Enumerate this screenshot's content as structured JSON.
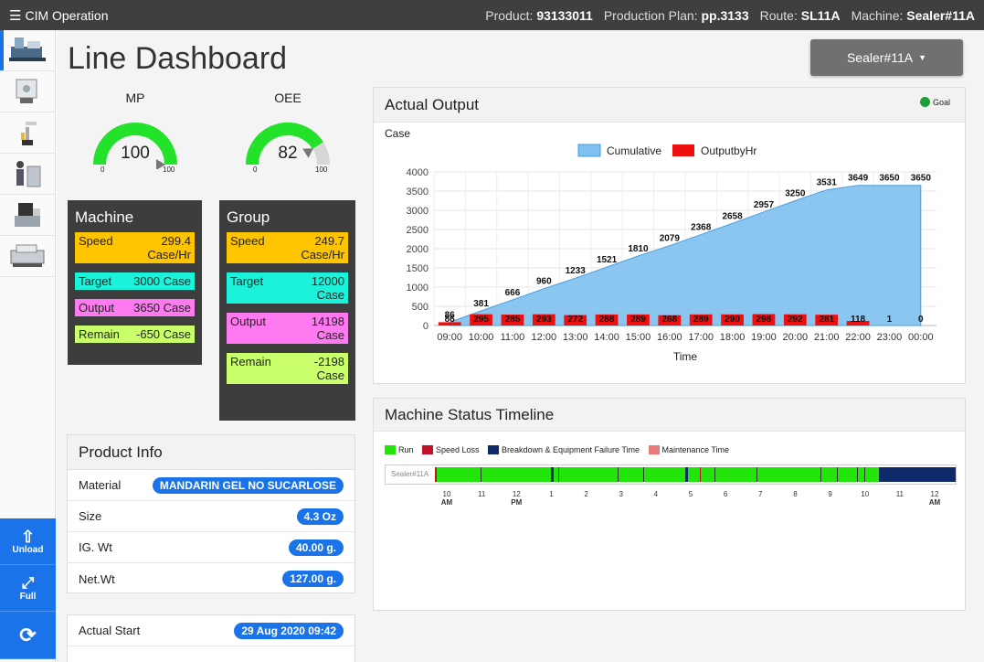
{
  "topbar": {
    "app_title": "CIM Operation",
    "product_label": "Product:",
    "product_value": "93133011",
    "plan_label": "Production Plan:",
    "plan_value": "pp.3133",
    "route_label": "Route:",
    "route_value": "SL11A",
    "machine_label": "Machine:",
    "machine_value": "Sealer#11A"
  },
  "sidebar": {
    "icons": [
      "filling-machine-icon",
      "conveyor-icon",
      "robot-arm-icon",
      "worker-icon",
      "packaging-icon",
      "printer-machine-icon"
    ],
    "buttons": [
      {
        "name": "unload",
        "label": "Unload"
      },
      {
        "name": "full",
        "label": "Full"
      },
      {
        "name": "refresh",
        "label": ""
      }
    ]
  },
  "page": {
    "title": "Line Dashboard",
    "machine_select": "Sealer#11A"
  },
  "gauges": [
    {
      "name": "mp",
      "label": "MP",
      "value": "100",
      "min": "0",
      "max": "100",
      "fraction": 1.0,
      "color": "#22e22a"
    },
    {
      "name": "oee",
      "label": "OEE",
      "value": "82",
      "min": "0",
      "max": "100",
      "fraction": 0.82,
      "color": "#22e22a"
    }
  ],
  "machine_panel": {
    "title": "Machine",
    "rows": [
      {
        "label": "Speed",
        "value": "299.4",
        "unit": "Case/Hr",
        "color": "y"
      },
      {
        "label": "Target",
        "value": "3000 Case",
        "unit": "",
        "color": "c"
      },
      {
        "label": "Output",
        "value": "3650 Case",
        "unit": "",
        "color": "m"
      },
      {
        "label": "Remain",
        "value": "-650 Case",
        "unit": "",
        "color": "g"
      }
    ]
  },
  "group_panel": {
    "title": "Group",
    "rows": [
      {
        "label": "Speed",
        "value": "249.7",
        "unit": "Case/Hr",
        "color": "y"
      },
      {
        "label": "Target",
        "value": "12000",
        "unit": "Case",
        "color": "c"
      },
      {
        "label": "Output",
        "value": "14198",
        "unit": "Case",
        "color": "m"
      },
      {
        "label": "Remain",
        "value": "-2198",
        "unit": "Case",
        "color": "g"
      }
    ]
  },
  "product_info": {
    "title": "Product Info",
    "rows": [
      {
        "label": "Material",
        "value": "MANDARIN GEL NO SUCARLOSE"
      },
      {
        "label": "Size",
        "value": "4.3 Oz"
      },
      {
        "label": "IG. Wt",
        "value": "40.00 g."
      },
      {
        "label": "Net.Wt",
        "value": "127.00 g."
      }
    ]
  },
  "start_info": {
    "rows": [
      {
        "label": "Actual Start",
        "value": "29 Aug 2020 09:42"
      }
    ]
  },
  "actual_output": {
    "title": "Actual Output",
    "goal_label": "Goal",
    "goal_color": "#1e9e3a"
  },
  "chart_data": {
    "type": "bar",
    "title": "",
    "ylabel": "Case",
    "xlabel": "Time",
    "ylim": [
      0,
      4000
    ],
    "yticks": [
      0,
      500,
      1000,
      1500,
      2000,
      2500,
      3000,
      3500,
      4000
    ],
    "categories": [
      "09:00",
      "10:00",
      "11:00",
      "12:00",
      "13:00",
      "14:00",
      "15:00",
      "16:00",
      "17:00",
      "18:00",
      "19:00",
      "20:00",
      "21:00",
      "22:00",
      "23:00",
      "00:00"
    ],
    "series": [
      {
        "name": "Cumulative",
        "type": "area",
        "color": "#7ec0ef",
        "values": [
          86,
          381,
          666,
          960,
          1233,
          1521,
          1810,
          2079,
          2368,
          2658,
          2957,
          3250,
          3531,
          3649,
          3650,
          3650
        ]
      },
      {
        "name": "OutputbyHr",
        "type": "bar",
        "color": "#ee0f0f",
        "values": [
          86,
          295,
          285,
          293,
          272,
          288,
          289,
          268,
          289,
          290,
          298,
          292,
          281,
          118,
          1,
          0
        ]
      }
    ],
    "legend_position": "top",
    "grid": true
  },
  "timeline": {
    "title": "Machine Status Timeline",
    "legend": [
      {
        "label": "Run",
        "color": "#22e60a"
      },
      {
        "label": "Speed Loss",
        "color": "#c0102a"
      },
      {
        "label": "Breakdown & Equipment Failure Time",
        "color": "#0e2a6b"
      },
      {
        "label": "Maintenance Time",
        "color": "#e77a7a"
      }
    ],
    "row_label": "Sealer#11A",
    "ticks": [
      {
        "label": "10",
        "sub": "AM"
      },
      {
        "label": "11",
        "sub": ""
      },
      {
        "label": "12",
        "sub": "PM"
      },
      {
        "label": "1",
        "sub": ""
      },
      {
        "label": "2",
        "sub": ""
      },
      {
        "label": "3",
        "sub": ""
      },
      {
        "label": "4",
        "sub": ""
      },
      {
        "label": "5",
        "sub": ""
      },
      {
        "label": "6",
        "sub": ""
      },
      {
        "label": "7",
        "sub": ""
      },
      {
        "label": "8",
        "sub": ""
      },
      {
        "label": "9",
        "sub": ""
      },
      {
        "label": "10",
        "sub": ""
      },
      {
        "label": "11",
        "sub": ""
      },
      {
        "label": "12",
        "sub": "AM"
      }
    ]
  }
}
